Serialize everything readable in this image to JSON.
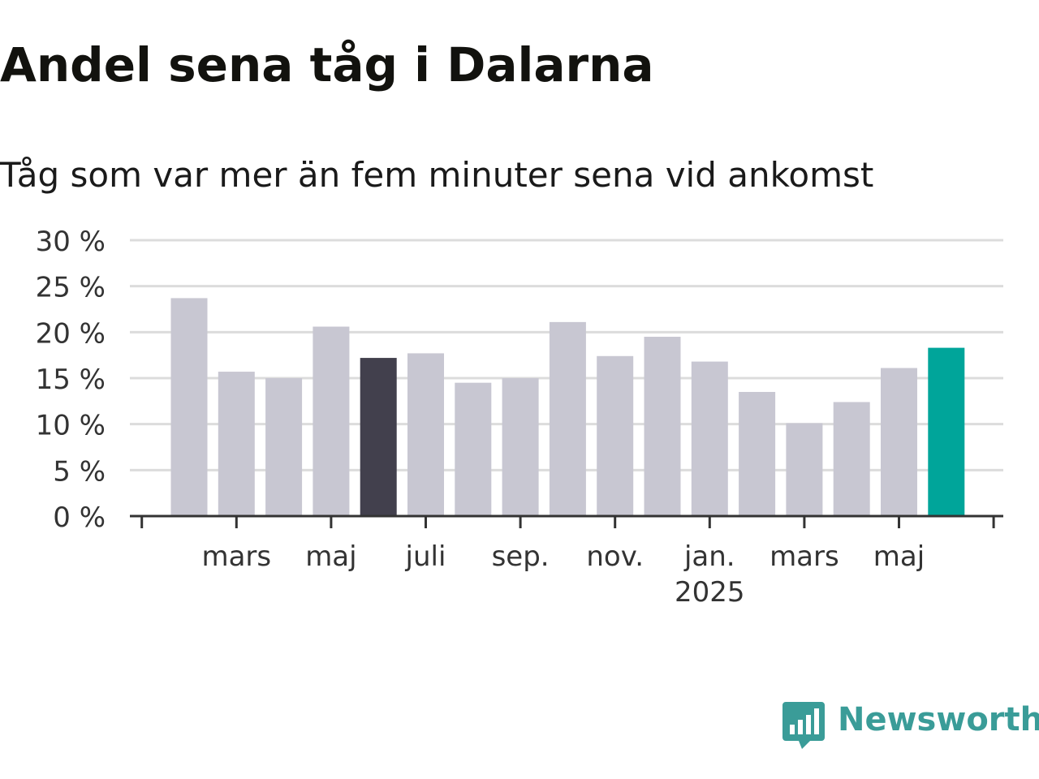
{
  "title": "Andel sena tåg i Dalarna",
  "subtitle": "Tåg som var mer än fem minuter sena vid ankomst",
  "brand": {
    "name": "Newsworthy",
    "color": "#3a9c98",
    "icon": "bar-chart-speech-bubble-icon"
  },
  "colors": {
    "default_bar": "#c8c7d2",
    "highlight_bar": "#42404d",
    "latest_bar": "#00a59a",
    "grid": "#dcdcdc",
    "axis": "#333333",
    "text": "#333333"
  },
  "chart_data": {
    "type": "bar",
    "title": "Andel sena tåg i Dalarna",
    "subtitle": "Tåg som var mer än fem minuter sena vid ankomst",
    "xlabel": "",
    "ylabel": "",
    "y_unit": "%",
    "ylim": [
      0,
      30
    ],
    "yticks": [
      0,
      5,
      10,
      15,
      20,
      25,
      30
    ],
    "ytick_labels": [
      "0 %",
      "5 %",
      "10 %",
      "15 %",
      "20 %",
      "25 %",
      "30 %"
    ],
    "grid": true,
    "legend": "none",
    "categories": [
      "2024-02",
      "2024-03",
      "2024-04",
      "2024-05",
      "2024-06",
      "2024-07",
      "2024-08",
      "2024-09",
      "2024-10",
      "2024-11",
      "2024-12",
      "2025-01",
      "2025-02",
      "2025-03",
      "2025-04",
      "2025-05",
      "2025-06"
    ],
    "values": [
      23.7,
      15.7,
      15.0,
      20.6,
      17.2,
      17.7,
      14.5,
      15.0,
      21.1,
      17.4,
      19.5,
      16.8,
      13.5,
      10.1,
      12.4,
      16.1,
      18.3
    ],
    "highlight": [
      {
        "category": "2024-06",
        "color_role": "highlight_bar"
      },
      {
        "category": "2025-06",
        "color_role": "latest_bar"
      }
    ],
    "x_tick_labels": [
      {
        "category": "2024-03",
        "label": "mars"
      },
      {
        "category": "2024-05",
        "label": "maj"
      },
      {
        "category": "2024-07",
        "label": "juli"
      },
      {
        "category": "2024-09",
        "label": "sep."
      },
      {
        "category": "2024-11",
        "label": "nov."
      },
      {
        "category": "2025-01",
        "label": "jan.",
        "sublabel": "2025"
      },
      {
        "category": "2025-03",
        "label": "mars"
      },
      {
        "category": "2025-05",
        "label": "maj"
      }
    ]
  }
}
